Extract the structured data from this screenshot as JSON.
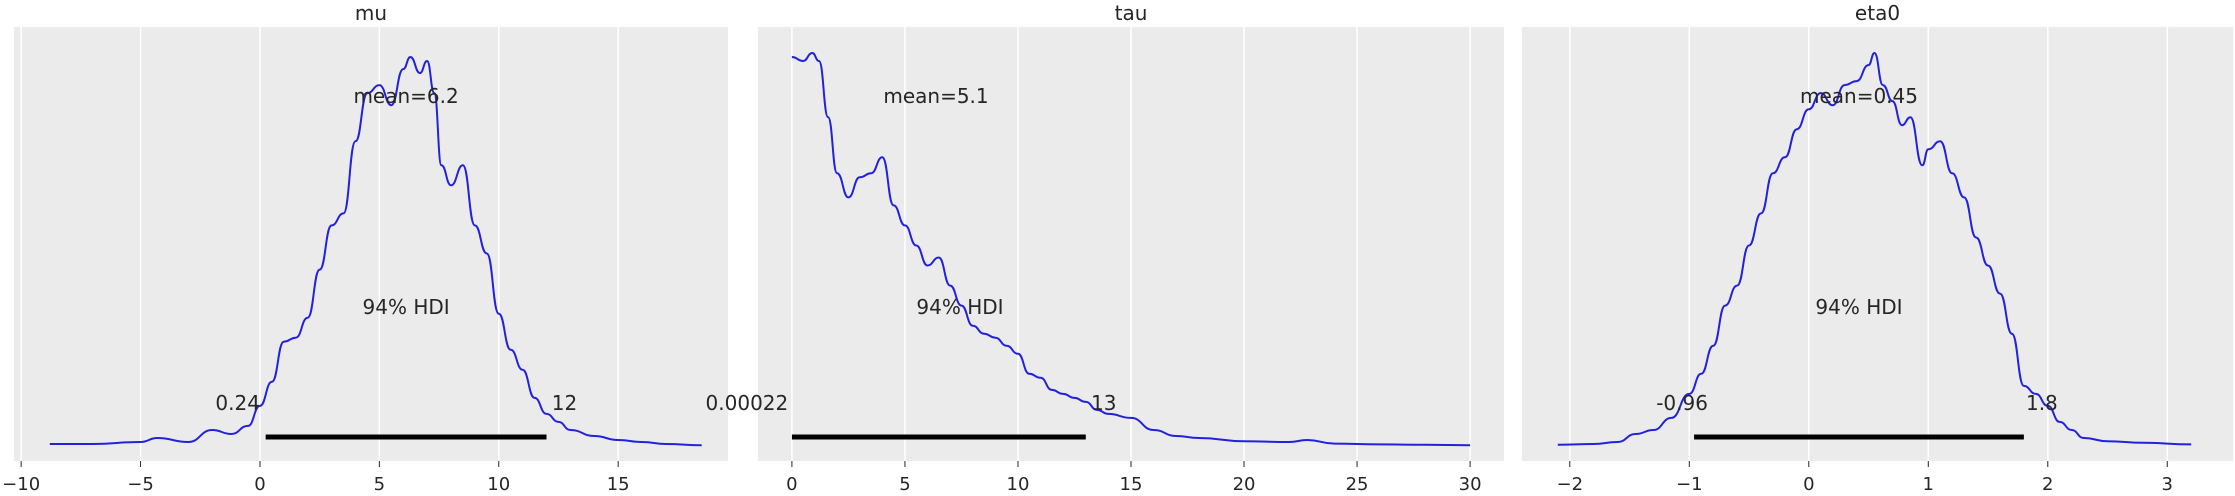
{
  "chart_data": [
    {
      "type": "line",
      "title": "mu",
      "xlim": [
        -10.3,
        19.6
      ],
      "xticks": [
        -10,
        -5,
        0,
        5,
        10,
        15
      ],
      "xtick_labels": [
        "−10",
        "−5",
        "0",
        "5",
        "10",
        "15"
      ],
      "grid": true,
      "mean_label": "mean=6.2",
      "hdi_label": "94% HDI",
      "hdi": [
        0.24,
        12
      ],
      "hdi_low_label": "0.24",
      "hdi_high_label": "12",
      "series": [
        {
          "color": "#2222dd",
          "x": [
            -8.8,
            -7.0,
            -5.0,
            -4.3,
            -3.0,
            -2.0,
            -1.2,
            -0.5,
            0.0,
            0.5,
            1.0,
            1.5,
            2.0,
            2.5,
            3.0,
            3.5,
            4.0,
            4.5,
            5.0,
            5.5,
            6.0,
            6.3,
            6.7,
            7.0,
            7.3,
            7.6,
            8.0,
            8.5,
            9.0,
            9.5,
            10.0,
            10.5,
            11.0,
            11.5,
            12.0,
            12.5,
            13.0,
            14.0,
            15.0,
            16.0,
            17.0,
            18.5
          ],
          "density": [
            0.005,
            0.005,
            0.01,
            0.02,
            0.01,
            0.04,
            0.03,
            0.05,
            0.1,
            0.16,
            0.26,
            0.27,
            0.32,
            0.44,
            0.55,
            0.58,
            0.76,
            0.88,
            0.9,
            0.85,
            0.94,
            0.97,
            0.93,
            0.96,
            0.88,
            0.7,
            0.65,
            0.7,
            0.55,
            0.48,
            0.33,
            0.24,
            0.19,
            0.12,
            0.08,
            0.06,
            0.04,
            0.025,
            0.015,
            0.01,
            0.005,
            0.002
          ]
        }
      ]
    },
    {
      "type": "line",
      "title": "tau",
      "xlim": [
        -1.5,
        31.5
      ],
      "xticks": [
        0,
        5,
        10,
        15,
        20,
        25,
        30
      ],
      "xtick_labels": [
        "0",
        "5",
        "10",
        "15",
        "20",
        "25",
        "30"
      ],
      "grid": true,
      "mean_label": "mean=5.1",
      "hdi_label": "94% HDI",
      "hdi": [
        0.00022,
        13
      ],
      "hdi_low_label": "0.00022",
      "hdi_high_label": "13",
      "series": [
        {
          "color": "#2222dd",
          "x": [
            0.0,
            0.5,
            0.9,
            1.2,
            1.6,
            2.0,
            2.5,
            3.0,
            3.5,
            4.0,
            4.5,
            5.0,
            5.5,
            6.0,
            6.5,
            7.0,
            7.5,
            8.0,
            8.5,
            9.0,
            9.5,
            10.0,
            10.5,
            11.0,
            11.5,
            12.0,
            12.5,
            13.0,
            13.5,
            14.0,
            15.0,
            16.0,
            17.0,
            18.0,
            20.0,
            22.0,
            22.8,
            24.0,
            26.0,
            28.0,
            30.0
          ],
          "density": [
            0.97,
            0.96,
            0.98,
            0.96,
            0.82,
            0.68,
            0.62,
            0.67,
            0.68,
            0.72,
            0.6,
            0.55,
            0.5,
            0.45,
            0.47,
            0.4,
            0.35,
            0.3,
            0.28,
            0.27,
            0.25,
            0.23,
            0.18,
            0.17,
            0.14,
            0.13,
            0.12,
            0.11,
            0.09,
            0.08,
            0.07,
            0.04,
            0.025,
            0.02,
            0.012,
            0.01,
            0.015,
            0.006,
            0.004,
            0.003,
            0.002
          ]
        }
      ]
    },
    {
      "type": "line",
      "title": "eta0",
      "xlim": [
        -2.4,
        3.55
      ],
      "xticks": [
        -2,
        -1,
        0,
        1,
        2,
        3
      ],
      "xtick_labels": [
        "−2",
        "−1",
        "0",
        "1",
        "2",
        "3"
      ],
      "grid": true,
      "mean_label": "mean=0.45",
      "hdi_label": "94% HDI",
      "hdi": [
        -0.96,
        1.8
      ],
      "hdi_low_label": "-0.96",
      "hdi_high_label": "1.8",
      "series": [
        {
          "color": "#2222dd",
          "x": [
            -2.1,
            -1.8,
            -1.6,
            -1.45,
            -1.3,
            -1.15,
            -1.0,
            -0.9,
            -0.8,
            -0.7,
            -0.6,
            -0.5,
            -0.4,
            -0.3,
            -0.2,
            -0.1,
            0.0,
            0.1,
            0.2,
            0.3,
            0.4,
            0.5,
            0.55,
            0.62,
            0.7,
            0.78,
            0.85,
            0.95,
            1.0,
            1.1,
            1.2,
            1.3,
            1.4,
            1.5,
            1.6,
            1.7,
            1.8,
            1.9,
            2.0,
            2.1,
            2.2,
            2.3,
            2.5,
            2.8,
            3.2
          ],
          "density": [
            0.003,
            0.005,
            0.01,
            0.03,
            0.04,
            0.07,
            0.13,
            0.18,
            0.25,
            0.35,
            0.4,
            0.5,
            0.58,
            0.68,
            0.72,
            0.79,
            0.84,
            0.88,
            0.85,
            0.9,
            0.91,
            0.95,
            0.98,
            0.9,
            0.86,
            0.8,
            0.82,
            0.7,
            0.74,
            0.76,
            0.68,
            0.62,
            0.52,
            0.45,
            0.38,
            0.28,
            0.15,
            0.13,
            0.1,
            0.06,
            0.04,
            0.02,
            0.012,
            0.008,
            0.004
          ]
        }
      ]
    }
  ]
}
